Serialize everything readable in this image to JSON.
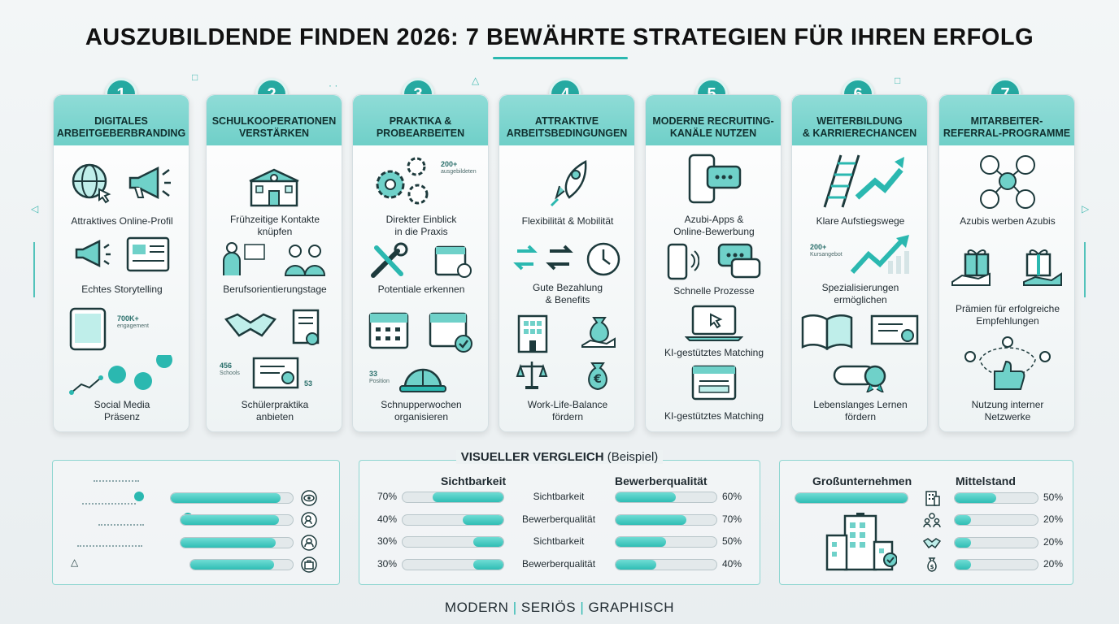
{
  "title": "AUSZUBILDENDE FINDEN 2026: 7 BEWÄHRTE STRATEGIEN FÜR IHREN ERFOLG",
  "accent_color": "#2bb8b0",
  "columns": [
    {
      "number": "1",
      "heading": "DIGITALES\nARBEITGEBERBRANDING",
      "items": [
        "Attraktives Online-Profil",
        "Echtes Storytelling",
        "Social Media\nPräsenz"
      ],
      "stats": [
        {
          "value": "700K+",
          "note": "engagement"
        }
      ],
      "icons": [
        "globe-cursor-icon",
        "megaphone-icon",
        "megaphone-icon",
        "webpage-icon",
        "tablet-icon",
        "social-network-icon"
      ]
    },
    {
      "number": "2",
      "heading": "SCHULKOOPERATIONEN\nVERSTÄRKEN",
      "items": [
        "Frühzeitige Kontakte\nknüpfen",
        "Berufsorientierungstage",
        "Schülerpraktika\nanbieten"
      ],
      "stats": [
        {
          "value": "456",
          "note": "Schools"
        },
        {
          "value": "53",
          "note": ""
        }
      ],
      "icons": [
        "school-icon",
        "teacher-icon",
        "students-icon",
        "handshake-icon",
        "certificate-icon",
        "diploma-icon"
      ]
    },
    {
      "number": "3",
      "heading": "PRAKTIKA &\nPROBEARBEITEN",
      "items": [
        "Direkter Einblick\nin die Praxis",
        "Potentiale erkennen",
        "Schnupperwochen\norganisieren"
      ],
      "stats": [
        {
          "value": "200+",
          "note": "ausgebildeten"
        },
        {
          "value": "33",
          "note": "Position"
        }
      ],
      "icons": [
        "gears-icon",
        "tools-icon",
        "calendar-icon",
        "calendar-icon",
        "calendar-check-icon",
        "hard-hat-icon"
      ]
    },
    {
      "number": "4",
      "heading": "ATTRAKTIVE\nARBEITSBEDINGUNGEN",
      "items": [
        "Flexibilität & Mobilität",
        "Gute Bezahlung\n& Benefits",
        "Work-Life-Balance\nfördern"
      ],
      "stats": [],
      "icons": [
        "rocket-icon",
        "arrows-icon",
        "clock-icon",
        "building-icon",
        "money-hand-icon",
        "balance-scale-icon",
        "money-bag-icon"
      ]
    },
    {
      "number": "5",
      "heading": "MODERNE RECRUITING-\nKANÄLE NUTZEN",
      "items": [
        "Azubi-Apps &\nOnline-Bewerbung",
        "Schnelle Prozesse",
        "KI-gestütztes Matching",
        "KI-gestütztes Matching"
      ],
      "stats": [],
      "icons": [
        "smartphone-chat-icon",
        "smartphone-icon",
        "chat-icon",
        "laptop-icon",
        "browser-window-icon"
      ]
    },
    {
      "number": "6",
      "heading": "WEITERBILDUNG\n& KARRIERECHANCEN",
      "items": [
        "Klare Aufstiegswege",
        "Spezialisierungen\nermöglichen",
        "Lebenslanges Lernen\nfördern"
      ],
      "stats": [
        {
          "value": "200+",
          "note": "Kursangebot"
        }
      ],
      "icons": [
        "ladder-arrow-icon",
        "growth-arrow-icon",
        "open-book-icon",
        "certificate-icon",
        "diploma-scroll-icon"
      ]
    },
    {
      "number": "7",
      "heading": "MITARBEITER-\nREFERRAL-PROGRAMME",
      "items": [
        "Azubis werben Azubis",
        "Prämien für erfolgreiche\nEmpfehlungen",
        "Nutzung interner\nNetzwerke"
      ],
      "stats": [],
      "icons": [
        "referral-network-icon",
        "gift-hand-icon",
        "gift-hand-icon",
        "network-thumbs-up-icon"
      ]
    }
  ],
  "left_panel": {
    "bars": [
      0.9,
      0.88,
      0.85,
      0.82
    ],
    "icons": [
      "eye-icon",
      "user-search-icon",
      "user-badge-icon",
      "briefcase-icon"
    ]
  },
  "middle_panel": {
    "heading_bold": "VISUELLER VERGLEICH",
    "heading_suffix": " (Beispiel)",
    "col_left": "Sichtbarkeit",
    "col_right": "Bewerberqualität",
    "rows": [
      {
        "left_pct": "70%",
        "left": 0.7,
        "label": "Sichtbarkeit",
        "right": 0.6,
        "right_pct": "60%"
      },
      {
        "left_pct": "40%",
        "left": 0.4,
        "label": "Bewerberqualität",
        "right": 0.7,
        "right_pct": "70%"
      },
      {
        "left_pct": "30%",
        "left": 0.3,
        "label": "Sichtbarkeit",
        "right": 0.5,
        "right_pct": "50%"
      },
      {
        "left_pct": "30%",
        "left": 0.3,
        "label": "Bewerberqualität",
        "right": 0.4,
        "right_pct": "40%"
      }
    ]
  },
  "right_panel": {
    "col_left": "Großunternehmen",
    "col_right": "Mittelstand",
    "left_bar": 1.0,
    "rows": [
      {
        "icon": "building-icon",
        "value": 0.5,
        "label": "50%"
      },
      {
        "icon": "people-icon",
        "value": 0.2,
        "label": "20%"
      },
      {
        "icon": "handshake-icon",
        "value": 0.2,
        "label": "20%"
      },
      {
        "icon": "money-bag-icon",
        "value": 0.2,
        "label": "20%"
      }
    ]
  },
  "footer": {
    "part1": "MODERN",
    "sep": "|",
    "part2": "SERIÖS",
    "part3": "GRAPHISCH"
  }
}
